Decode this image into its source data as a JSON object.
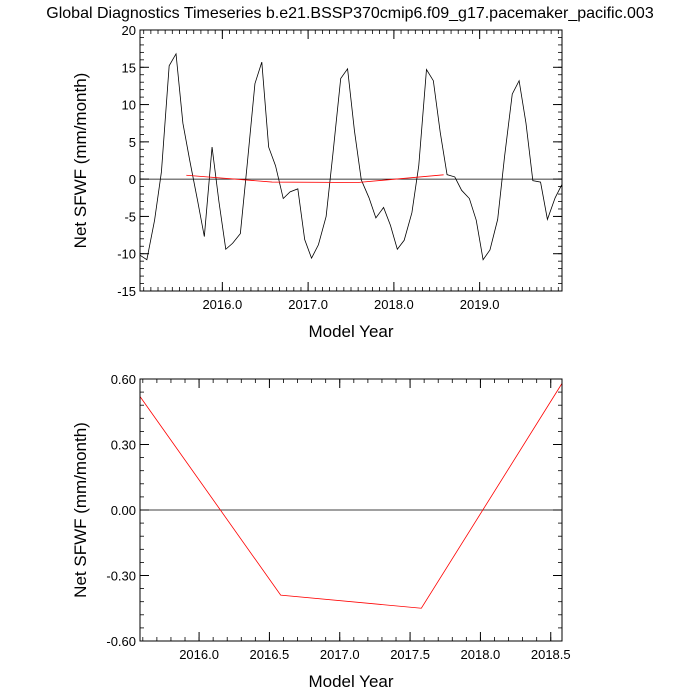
{
  "title": "Global Diagnostics Timeseries b.e21.BSSP370cmip6.f09_g17.pacemaker_pacific.003",
  "chart_data": [
    {
      "type": "line",
      "xlabel": "Model Year",
      "ylabel": "Net SFWF (mm/month)",
      "xlim": [
        2015.04,
        2019.96
      ],
      "ylim": [
        -15,
        20
      ],
      "xticks": [
        2016.0,
        2017.0,
        2018.0,
        2019.0
      ],
      "xtick_labels": [
        "2016.0",
        "2017.0",
        "2018.0",
        "2019.0"
      ],
      "yticks": [
        -15,
        -10,
        -5,
        0,
        5,
        10,
        15,
        20
      ],
      "ytick_labels": [
        "-15",
        "-10",
        "-5",
        "0",
        "5",
        "10",
        "15",
        "20"
      ],
      "reference_line_y": 0,
      "grid": false,
      "series": [
        {
          "color": "#000000",
          "x": [
            2015.04,
            2015.12,
            2015.21,
            2015.29,
            2015.38,
            2015.46,
            2015.54,
            2015.62,
            2015.71,
            2015.79,
            2015.88,
            2015.96,
            2016.04,
            2016.12,
            2016.21,
            2016.29,
            2016.38,
            2016.46,
            2016.54,
            2016.62,
            2016.71,
            2016.79,
            2016.88,
            2016.96,
            2017.04,
            2017.12,
            2017.21,
            2017.29,
            2017.38,
            2017.46,
            2017.54,
            2017.62,
            2017.71,
            2017.79,
            2017.88,
            2017.96,
            2018.04,
            2018.12,
            2018.21,
            2018.29,
            2018.38,
            2018.46,
            2018.54,
            2018.62,
            2018.71,
            2018.79,
            2018.88,
            2018.96,
            2019.04,
            2019.12,
            2019.21,
            2019.29,
            2019.38,
            2019.46,
            2019.54,
            2019.62,
            2019.71,
            2019.79,
            2019.88,
            2019.96
          ],
          "y": [
            -10.2,
            -10.8,
            -5.5,
            1.0,
            15.2,
            16.8,
            7.5,
            2.5,
            -2.8,
            -7.7,
            4.3,
            -3.0,
            -9.4,
            -8.6,
            -7.3,
            2.0,
            12.8,
            15.7,
            4.3,
            1.8,
            -2.6,
            -1.7,
            -1.3,
            -8.1,
            -10.6,
            -8.8,
            -5.0,
            3.5,
            13.5,
            14.8,
            6.5,
            -0.1,
            -2.5,
            -5.2,
            -3.8,
            -6.2,
            -9.4,
            -8.2,
            -4.5,
            1.8,
            14.7,
            13.2,
            6.3,
            0.6,
            0.3,
            -1.5,
            -2.6,
            -5.5,
            -10.8,
            -9.5,
            -5.4,
            3.0,
            11.4,
            13.2,
            7.5,
            -0.2,
            -0.4,
            -5.4,
            -2.5,
            -0.7
          ]
        },
        {
          "color": "#ff0000",
          "x": [
            2015.58,
            2016.58,
            2017.58,
            2018.58
          ],
          "y": [
            0.52,
            -0.39,
            -0.45,
            0.58
          ]
        }
      ]
    },
    {
      "type": "line",
      "xlabel": "Model Year",
      "ylabel": "Net SFWF (mm/month)",
      "xlim": [
        2015.58,
        2018.58
      ],
      "ylim": [
        -0.6,
        0.6
      ],
      "xticks": [
        2016.0,
        2016.5,
        2017.0,
        2017.5,
        2018.0,
        2018.5
      ],
      "xtick_labels": [
        "2016.0",
        "2016.5",
        "2017.0",
        "2017.5",
        "2018.0",
        "2018.5"
      ],
      "yticks": [
        -0.6,
        -0.3,
        0.0,
        0.3,
        0.6
      ],
      "ytick_labels": [
        "-0.60",
        "-0.30",
        "0.00",
        "0.30",
        "0.60"
      ],
      "reference_line_y": 0,
      "grid": false,
      "series": [
        {
          "color": "#ff0000",
          "x": [
            2015.58,
            2016.58,
            2017.58,
            2018.58
          ],
          "y": [
            0.52,
            -0.39,
            -0.45,
            0.58
          ]
        }
      ]
    }
  ]
}
